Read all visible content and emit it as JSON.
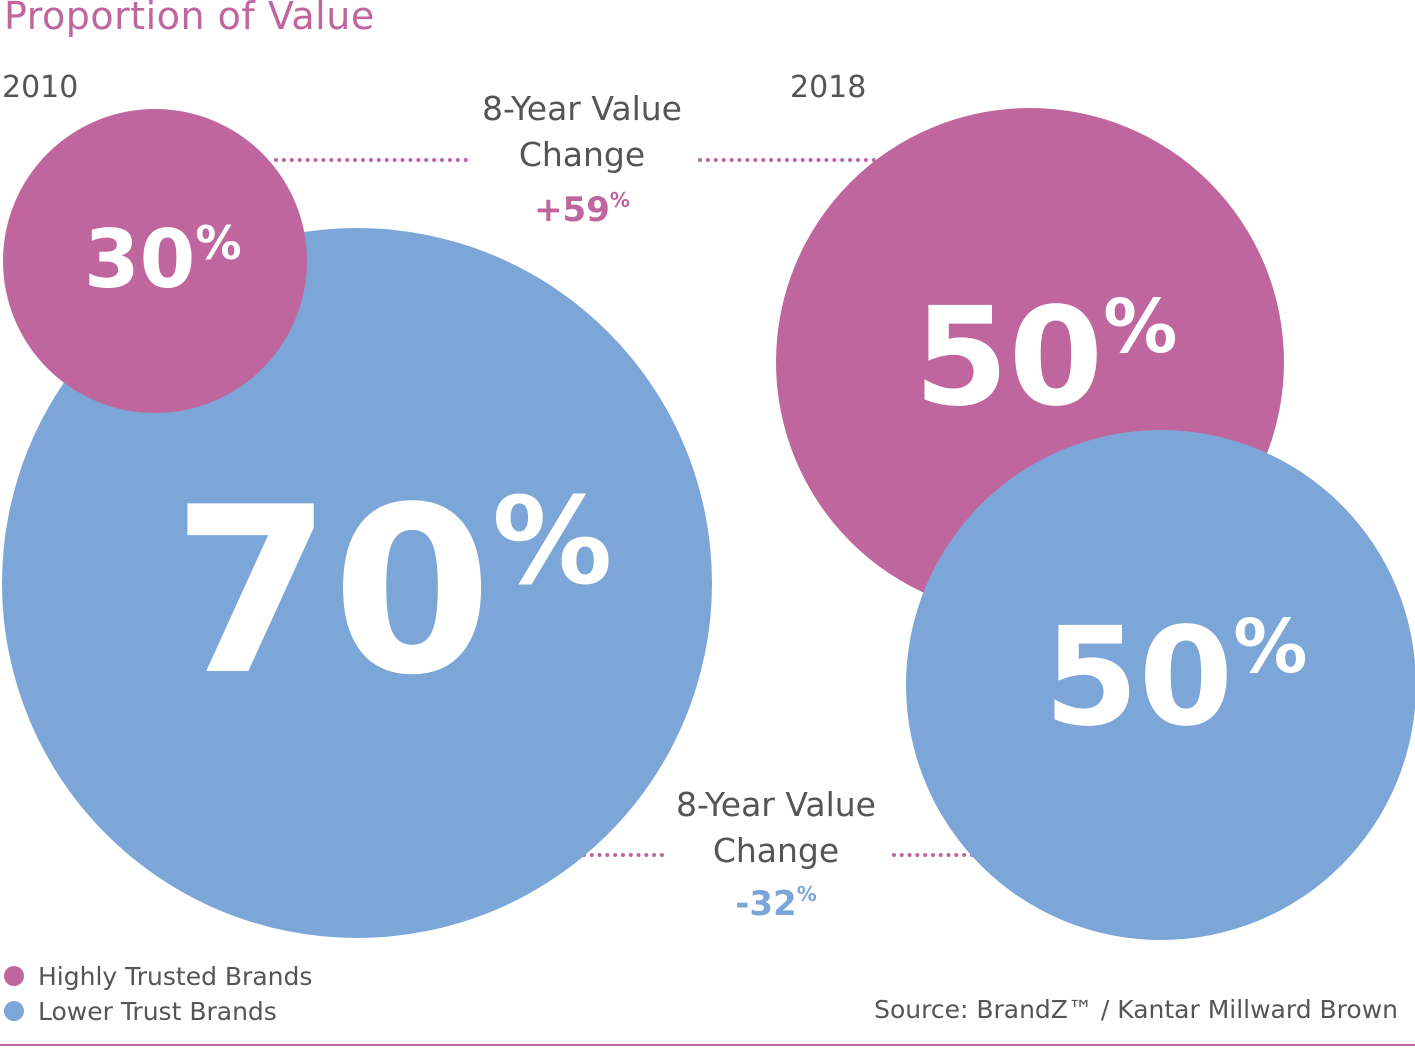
{
  "title": "Proportion of Value",
  "colors": {
    "highly_trusted": "#c0669e",
    "lower_trust": "#7ba6d7",
    "text": "#555555"
  },
  "chart_data": {
    "type": "bubble",
    "title": "Proportion of Value",
    "categories": [
      "2010",
      "2018"
    ],
    "series": [
      {
        "name": "Highly Trusted Brands",
        "values": [
          30,
          50
        ],
        "labels": [
          "30%",
          "50%"
        ],
        "color": "#c0669e"
      },
      {
        "name": "Lower Trust Brands",
        "values": [
          70,
          50
        ],
        "labels": [
          "70%",
          "50%"
        ],
        "color": "#7ba6d7"
      }
    ],
    "changes": [
      {
        "label": "8-Year Value Change",
        "value": "+59",
        "unit": "%",
        "series": "Highly Trusted Brands"
      },
      {
        "label": "8-Year Value Change",
        "value": "-32",
        "unit": "%",
        "series": "Lower Trust Brands"
      }
    ],
    "legend_position": "bottom-left"
  },
  "years": {
    "left": "2010",
    "right": "2018"
  },
  "bubbles": {
    "b2010_high": {
      "num": "30",
      "pct": "%"
    },
    "b2010_low": {
      "num": "70",
      "pct": "%"
    },
    "b2018_high": {
      "num": "50",
      "pct": "%"
    },
    "b2018_low": {
      "num": "50",
      "pct": "%"
    }
  },
  "change_high": {
    "line1": "8-Year Value",
    "line2": "Change",
    "value": "+59",
    "unit": "%"
  },
  "change_low": {
    "line1": "8-Year Value",
    "line2": "Change",
    "value": "-32",
    "unit": "%"
  },
  "legend": [
    {
      "label": "Highly Trusted Brands",
      "color": "#c0669e"
    },
    {
      "label": "Lower Trust Brands",
      "color": "#7ba6d7"
    }
  ],
  "source": "Source: BrandZ™ / Kantar Millward Brown"
}
